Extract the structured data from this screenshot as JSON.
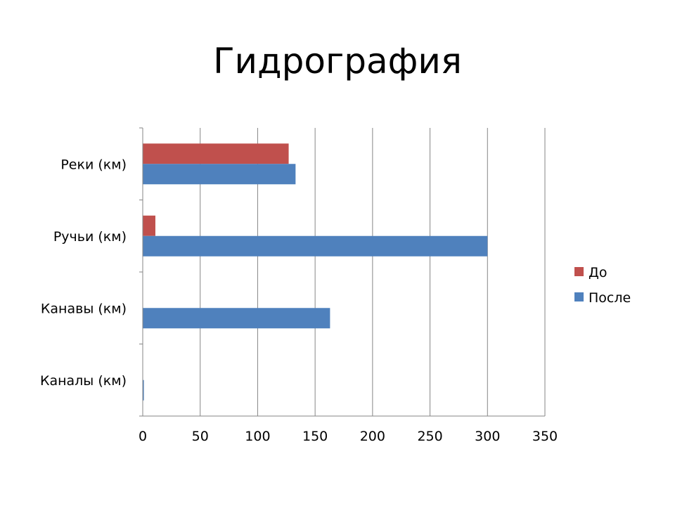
{
  "chart_data": {
    "type": "bar",
    "orientation": "horizontal",
    "title": "Гидрография",
    "xlabel": "",
    "ylabel": "",
    "categories": [
      "Реки (км)",
      "Ручьи (км)",
      "Канавы (км)",
      "Каналы (км)"
    ],
    "series": [
      {
        "name": "До",
        "color": "#C0504D",
        "values": [
          127,
          11,
          0,
          0
        ]
      },
      {
        "name": "После",
        "color": "#4F81BD",
        "values": [
          133,
          300,
          163,
          1
        ]
      }
    ],
    "xlim": [
      0,
      350
    ],
    "xticks": [
      0,
      50,
      100,
      150,
      200,
      250,
      300,
      350
    ],
    "grid": true,
    "legend": "right"
  }
}
